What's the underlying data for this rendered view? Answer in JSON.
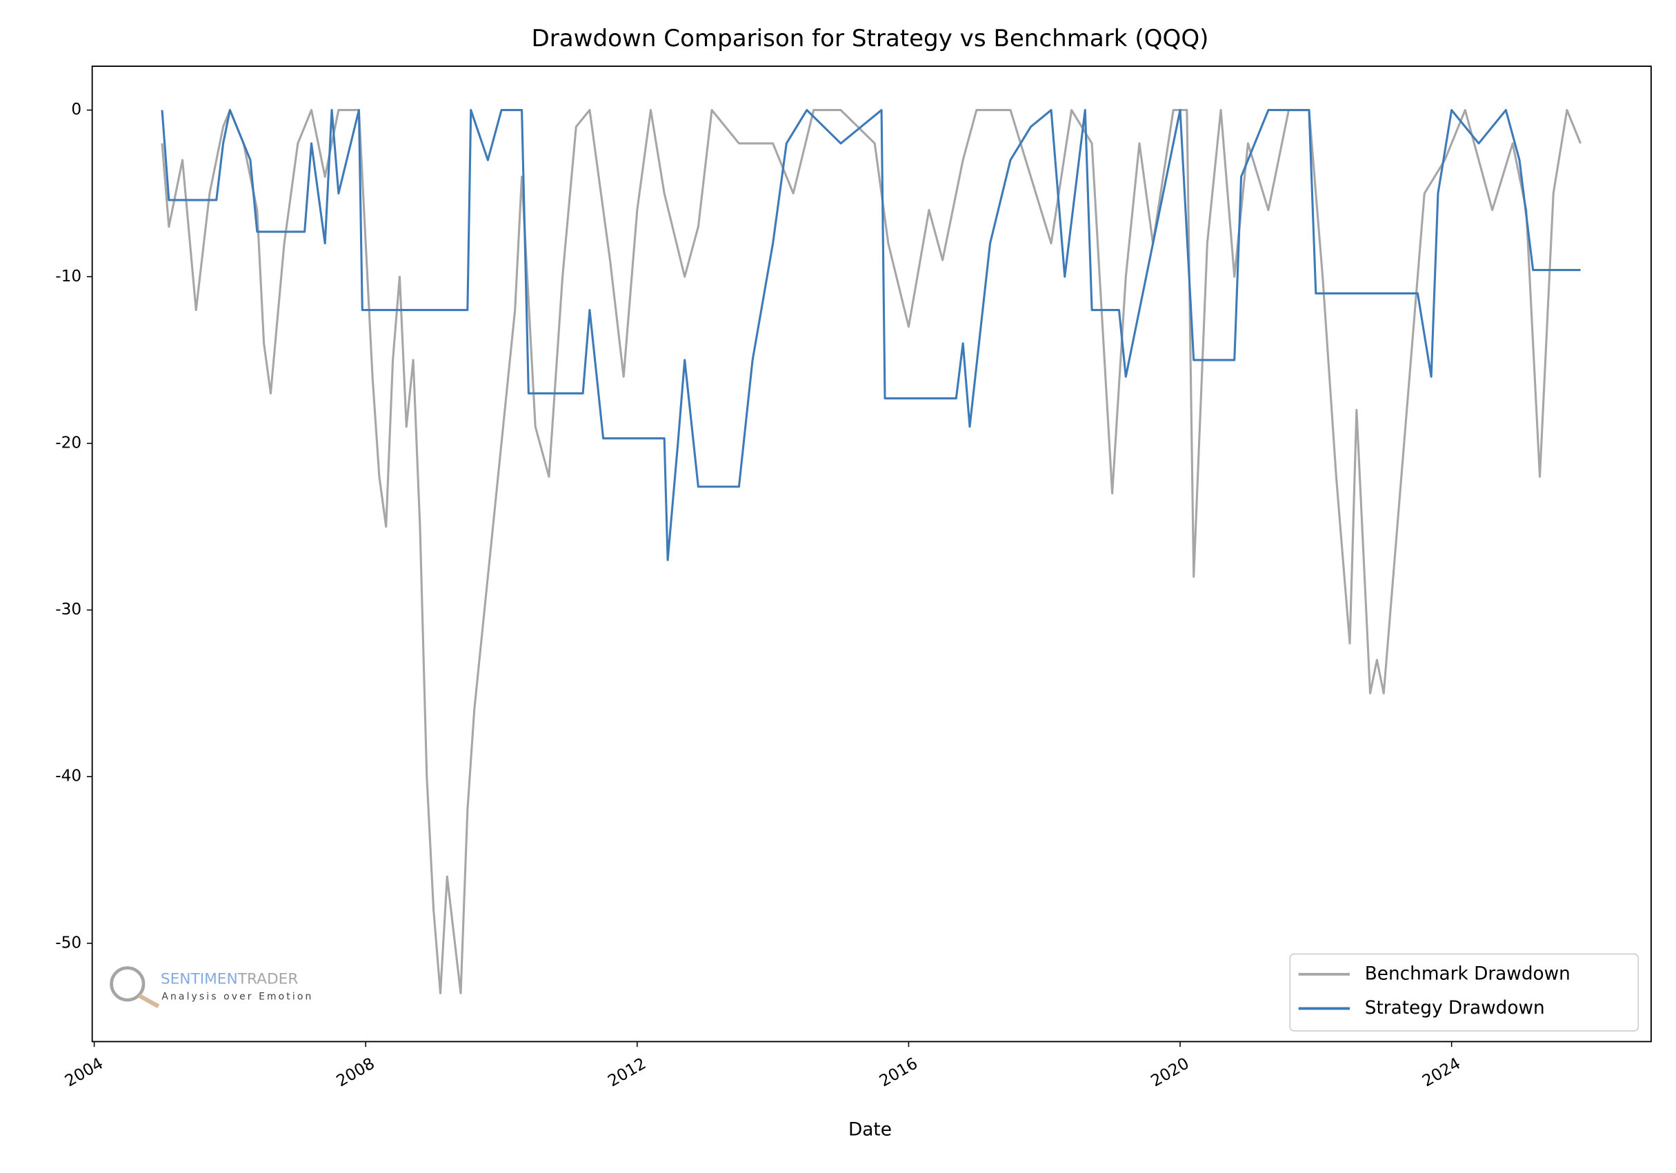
{
  "chart_data": {
    "type": "line",
    "title": "Drawdown Comparison for Strategy vs Benchmark (QQQ)",
    "x_label": "Date",
    "xlim": [
      2003.97,
      2026.94
    ],
    "xticks": [
      2004,
      2008,
      2012,
      2016,
      2020,
      2024
    ],
    "ylim": [
      -55.9,
      2.63
    ],
    "yticks": [
      0,
      -10,
      -20,
      -30,
      -40,
      -50
    ],
    "grid": false,
    "legend": "lower right",
    "watermark": {
      "brand_a": "SENTIMEN",
      "brand_b": "TRADER",
      "tagline": "Analysis over Emotion"
    },
    "series": [
      {
        "name": "Benchmark Drawdown",
        "color": "#a6a6a8",
        "x": [
          2005.0,
          2005.1,
          2005.3,
          2005.5,
          2005.7,
          2005.9,
          2006.0,
          2006.2,
          2006.4,
          2006.5,
          2006.6,
          2006.8,
          2007.0,
          2007.2,
          2007.4,
          2007.6,
          2007.9,
          2008.0,
          2008.1,
          2008.2,
          2008.3,
          2008.4,
          2008.5,
          2008.6,
          2008.7,
          2008.8,
          2008.9,
          2009.0,
          2009.1,
          2009.2,
          2009.4,
          2009.5,
          2009.6,
          2009.8,
          2010.0,
          2010.2,
          2010.3,
          2010.5,
          2010.7,
          2010.9,
          2011.1,
          2011.3,
          2011.6,
          2011.8,
          2012.0,
          2012.2,
          2012.4,
          2012.7,
          2012.9,
          2013.1,
          2013.5,
          2014.0,
          2014.3,
          2014.6,
          2015.0,
          2015.5,
          2015.7,
          2016.0,
          2016.3,
          2016.5,
          2016.8,
          2017.0,
          2017.5,
          2018.1,
          2018.4,
          2018.7,
          2018.9,
          2019.0,
          2019.2,
          2019.4,
          2019.6,
          2019.9,
          2020.1,
          2020.2,
          2020.4,
          2020.6,
          2020.8,
          2021.0,
          2021.3,
          2021.6,
          2021.9,
          2022.1,
          2022.3,
          2022.5,
          2022.6,
          2022.8,
          2022.9,
          2023.0,
          2023.2,
          2023.4,
          2023.6,
          2023.9,
          2024.2,
          2024.6,
          2024.9,
          2025.1,
          2025.2,
          2025.3,
          2025.5,
          2025.7,
          2025.9
        ],
        "values": [
          -2,
          -7,
          -3,
          -12,
          -5,
          -1,
          0,
          -2,
          -6,
          -14,
          -17,
          -8,
          -2,
          0,
          -4,
          0,
          0,
          -8,
          -16,
          -22,
          -25,
          -15,
          -10,
          -19,
          -15,
          -25,
          -40,
          -48,
          -53,
          -46,
          -53,
          -42,
          -36,
          -28,
          -20,
          -12,
          -4,
          -19,
          -22,
          -10,
          -1,
          0,
          -9,
          -16,
          -6,
          0,
          -5,
          -10,
          -7,
          0,
          -2,
          -2,
          -5,
          0,
          0,
          -2,
          -8,
          -13,
          -6,
          -9,
          -3,
          0,
          0,
          -8,
          0,
          -2,
          -16,
          -23,
          -10,
          -2,
          -8,
          0,
          0,
          -28,
          -8,
          0,
          -10,
          -2,
          -6,
          0,
          0,
          -10,
          -22,
          -32,
          -18,
          -35,
          -33,
          -35,
          -25,
          -15,
          -5,
          -3,
          0,
          -6,
          -2,
          -6,
          -14,
          -22,
          -5,
          0,
          -2
        ]
      },
      {
        "name": "Strategy Drawdown",
        "color": "#3d7ab8",
        "x": [
          2005.0,
          2005.1,
          2005.8,
          2005.9,
          2006.0,
          2006.3,
          2006.4,
          2007.1,
          2007.2,
          2007.4,
          2007.5,
          2007.6,
          2007.9,
          2007.95,
          2009.5,
          2009.55,
          2009.8,
          2010.0,
          2010.3,
          2010.4,
          2011.2,
          2011.3,
          2011.5,
          2012.4,
          2012.45,
          2012.6,
          2012.7,
          2012.9,
          2013.5,
          2013.7,
          2014.0,
          2014.2,
          2014.5,
          2015.0,
          2015.6,
          2015.65,
          2016.7,
          2016.8,
          2016.9,
          2017.2,
          2017.5,
          2017.8,
          2018.1,
          2018.3,
          2018.6,
          2018.7,
          2019.1,
          2019.2,
          2019.6,
          2019.8,
          2020.0,
          2020.2,
          2020.8,
          2020.9,
          2021.3,
          2021.9,
          2022.0,
          2023.5,
          2023.7,
          2023.8,
          2024.0,
          2024.4,
          2024.8,
          2025.0,
          2025.2,
          2025.9
        ],
        "values": [
          0,
          -5.4,
          -5.4,
          -2,
          0,
          -3,
          -7.3,
          -7.3,
          -2,
          -8,
          0,
          -5,
          0,
          -12,
          -12,
          0,
          -3,
          0,
          0,
          -17,
          -17,
          -12,
          -19.7,
          -19.7,
          -27,
          -20,
          -15,
          -22.6,
          -22.6,
          -15,
          -8,
          -2,
          0,
          -2,
          0,
          -17.3,
          -17.3,
          -14,
          -19,
          -8,
          -3,
          -1,
          0,
          -10,
          0,
          -12,
          -12,
          -16,
          -8,
          -4,
          0,
          -15,
          -15,
          -4,
          0,
          0,
          -11,
          -11,
          -16,
          -5,
          0,
          -2,
          0,
          -3,
          -9.6,
          -9.6
        ]
      }
    ]
  }
}
